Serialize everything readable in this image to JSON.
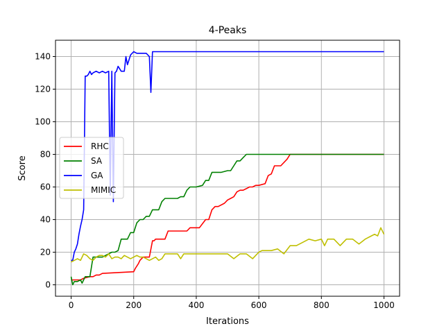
{
  "chart_data": {
    "type": "line",
    "title": "4-Peaks",
    "xlabel": "Iterations",
    "ylabel": "Score",
    "xlim": [
      -50,
      1050
    ],
    "ylim": [
      -7,
      150
    ],
    "xticks": [
      0,
      200,
      400,
      600,
      800,
      1000
    ],
    "yticks": [
      0,
      20,
      40,
      60,
      80,
      100,
      120,
      140
    ],
    "grid": true,
    "legend_position": "center-left",
    "series": [
      {
        "name": "RHC",
        "color": "#ff0000",
        "x": [
          0,
          5,
          30,
          40,
          60,
          70,
          80,
          90,
          100,
          200,
          205,
          215,
          220,
          230,
          250,
          260,
          265,
          270,
          280,
          300,
          310,
          330,
          340,
          350,
          370,
          380,
          400,
          410,
          430,
          440,
          450,
          460,
          470,
          490,
          500,
          510,
          520,
          530,
          540,
          550,
          560,
          570,
          580,
          590,
          600,
          620,
          630,
          640,
          650,
          660,
          670,
          690,
          700,
          710,
          720,
          800,
          900,
          1000
        ],
        "y": [
          3,
          3,
          3,
          4,
          5,
          5,
          6,
          6,
          7,
          8,
          10,
          13,
          15,
          17,
          17,
          27,
          27,
          28,
          28,
          28,
          33,
          33,
          33,
          33,
          33,
          35,
          35,
          35,
          40,
          40,
          46,
          48,
          48,
          50,
          52,
          53,
          54,
          57,
          58,
          58,
          59,
          60,
          60,
          61,
          61,
          62,
          67,
          68,
          73,
          73,
          73,
          77,
          80,
          80,
          80,
          80,
          80,
          80
        ]
      },
      {
        "name": "SA",
        "color": "#008000",
        "x": [
          0,
          5,
          10,
          20,
          30,
          35,
          45,
          60,
          70,
          80,
          100,
          130,
          140,
          150,
          160,
          170,
          180,
          190,
          200,
          210,
          220,
          230,
          240,
          250,
          260,
          270,
          280,
          290,
          300,
          320,
          340,
          350,
          360,
          370,
          380,
          390,
          400,
          420,
          430,
          440,
          450,
          460,
          470,
          480,
          500,
          510,
          520,
          530,
          540,
          550,
          560,
          570,
          600,
          700,
          800,
          900,
          1000
        ],
        "y": [
          5,
          0,
          2,
          2,
          3,
          1,
          5,
          5,
          17,
          17,
          17,
          20,
          20,
          21,
          28,
          28,
          28,
          32,
          32,
          38,
          40,
          40,
          42,
          42,
          46,
          46,
          46,
          51,
          53,
          53,
          53,
          54,
          54,
          58,
          60,
          60,
          60,
          61,
          64,
          64,
          69,
          69,
          69,
          69,
          70,
          70,
          73,
          76,
          76,
          78,
          80,
          80,
          80,
          80,
          80,
          80,
          80
        ]
      },
      {
        "name": "GA",
        "color": "#0000ff",
        "x": [
          0,
          5,
          10,
          15,
          20,
          25,
          30,
          35,
          40,
          45,
          50,
          55,
          60,
          65,
          70,
          80,
          90,
          100,
          110,
          120,
          125,
          130,
          135,
          140,
          145,
          150,
          160,
          170,
          175,
          180,
          190,
          200,
          210,
          220,
          240,
          250,
          255,
          260,
          265,
          300,
          400,
          500,
          600,
          700,
          800,
          900,
          1000
        ],
        "y": [
          15,
          15,
          20,
          22,
          25,
          31,
          36,
          40,
          46,
          128,
          128,
          129,
          131,
          129,
          130,
          131,
          130,
          131,
          130,
          131,
          55,
          131,
          51,
          130,
          131,
          134,
          131,
          131,
          140,
          135,
          141,
          143,
          142,
          142,
          142,
          140,
          118,
          143,
          143,
          143,
          143,
          143,
          143,
          143,
          143,
          143,
          143
        ]
      },
      {
        "name": "MIMIC",
        "color": "#bfbf00",
        "x": [
          0,
          10,
          20,
          30,
          40,
          50,
          60,
          70,
          80,
          90,
          100,
          110,
          120,
          130,
          140,
          150,
          160,
          170,
          180,
          190,
          200,
          210,
          220,
          230,
          240,
          250,
          260,
          270,
          280,
          290,
          300,
          320,
          340,
          350,
          360,
          380,
          400,
          450,
          500,
          520,
          540,
          560,
          580,
          590,
          600,
          610,
          620,
          640,
          660,
          680,
          700,
          720,
          740,
          760,
          780,
          800,
          810,
          820,
          840,
          860,
          880,
          900,
          920,
          940,
          960,
          970,
          980,
          990,
          1000
        ],
        "y": [
          14,
          15,
          16,
          15,
          19,
          18,
          16,
          15,
          17,
          18,
          18,
          17,
          19,
          16,
          17,
          17,
          16,
          18,
          17,
          16,
          17,
          18,
          17,
          17,
          16,
          15,
          16,
          17,
          15,
          16,
          19,
          19,
          19,
          16,
          19,
          19,
          19,
          19,
          19,
          16,
          19,
          19,
          16,
          18,
          20,
          21,
          21,
          21,
          22,
          19,
          24,
          24,
          26,
          28,
          27,
          28,
          24,
          28,
          28,
          24,
          28,
          28,
          25,
          28,
          30,
          31,
          30,
          35,
          31
        ]
      }
    ]
  }
}
